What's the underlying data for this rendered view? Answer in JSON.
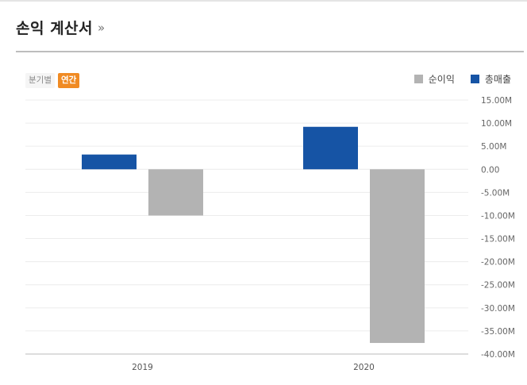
{
  "header": {
    "title": "손익 계산서",
    "more": "»"
  },
  "tabs": [
    {
      "label": "분기별",
      "active": false
    },
    {
      "label": "연간",
      "active": true
    }
  ],
  "colors": {
    "net_income": "#b3b3b3",
    "revenue": "#1654a5",
    "accent": "#f08b24"
  },
  "chart_data": {
    "type": "bar",
    "categories": [
      "2019",
      "2020"
    ],
    "series": [
      {
        "name": "총매출",
        "values": [
          3.2,
          9.2
        ],
        "color": "#1654a5"
      },
      {
        "name": "순이익",
        "values": [
          -10.0,
          -37.6
        ],
        "color": "#b3b3b3"
      }
    ],
    "legend": [
      {
        "name": "순이익",
        "color": "#b3b3b3"
      },
      {
        "name": "총매출",
        "color": "#1654a5"
      }
    ],
    "y_ticks": [
      15,
      10,
      5,
      0,
      -5,
      -10,
      -15,
      -20,
      -25,
      -30,
      -35,
      -40
    ],
    "y_tick_labels": [
      "15.00M",
      "10.00M",
      "5.00M",
      "0.00",
      "-5.00M",
      "-10.00M",
      "-15.00M",
      "-20.00M",
      "-25.00M",
      "-30.00M",
      "-35.00M",
      "-40.00M"
    ],
    "ylim": [
      -40,
      15
    ],
    "grid": true,
    "legend_position": "top-right",
    "title": "",
    "xlabel": "",
    "ylabel": ""
  }
}
